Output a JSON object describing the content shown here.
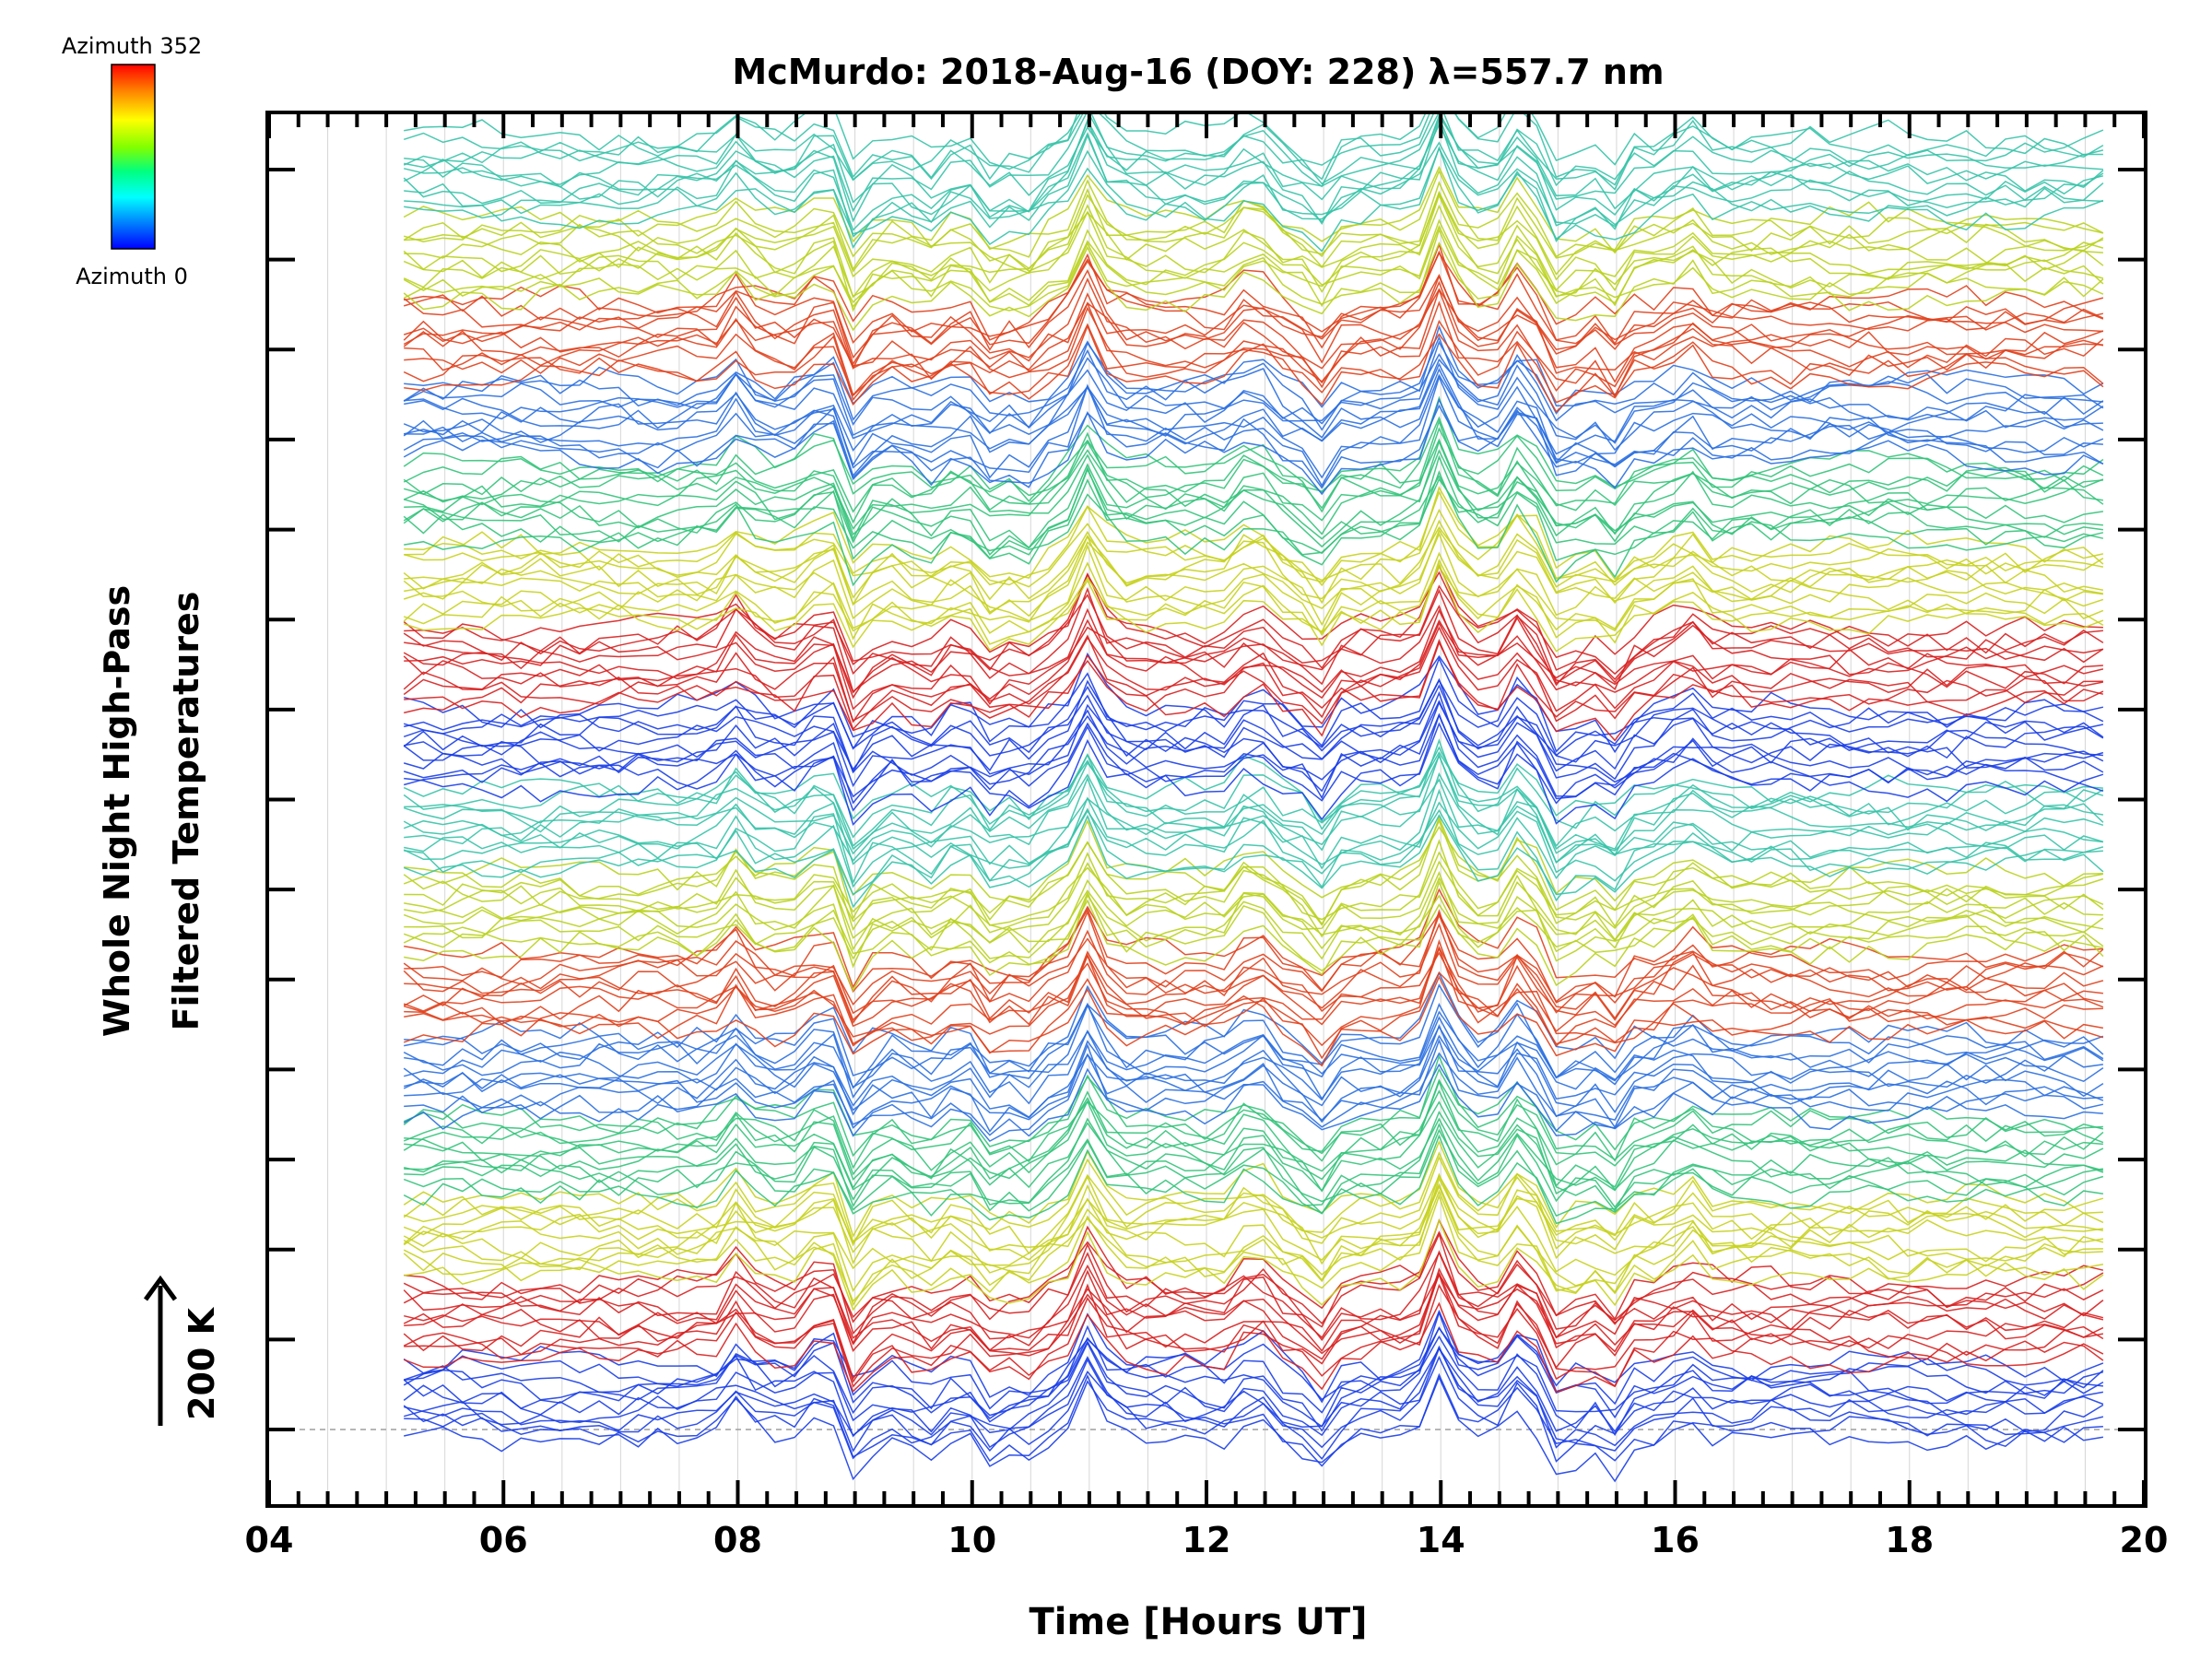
{
  "chart_data": {
    "type": "line",
    "title": "McMurdo: 2018-Aug-16 (DOY: 228) λ=557.7 nm",
    "xlabel": "Time [Hours UT]",
    "ylabel_line1": "Whole Night High-Pass",
    "ylabel_line2": "Filtered Temperatures",
    "scale_label": "200 K",
    "xlim": [
      4,
      20
    ],
    "x_ticks": [
      "04",
      "06",
      "08",
      "10",
      "12",
      "14",
      "16",
      "18",
      "20"
    ],
    "y_minor_tick_count": 15,
    "legend": {
      "top_label": "Azimuth 352",
      "bottom_label": "Azimuth 0",
      "colormap": [
        "#ff0000",
        "#ff8000",
        "#ffff00",
        "#80ff00",
        "#00ff80",
        "#00ffff",
        "#0080ff",
        "#0000ff"
      ]
    },
    "series_count": 176,
    "time_start_hours": 5.15,
    "time_end_hours": 19.8,
    "sample_interval_hours": 0.1667,
    "stack_colors": [
      "#1a3ee8",
      "#d81f1f",
      "#c7d21c",
      "#33c37a",
      "#2a6fe0",
      "#e0401c",
      "#b9d21d",
      "#36c3a9"
    ],
    "event_times_hours": [
      8.0,
      8.75,
      9.0,
      9.6,
      10.2,
      10.5,
      11.0,
      12.4,
      12.95,
      14.0,
      14.7,
      15.05,
      15.45,
      16.1
    ],
    "event_amplitudes": [
      0.7,
      0.9,
      -0.9,
      -0.5,
      -0.8,
      -0.6,
      1.3,
      0.8,
      -0.8,
      1.6,
      1.0,
      -0.9,
      -0.8,
      0.6
    ]
  }
}
